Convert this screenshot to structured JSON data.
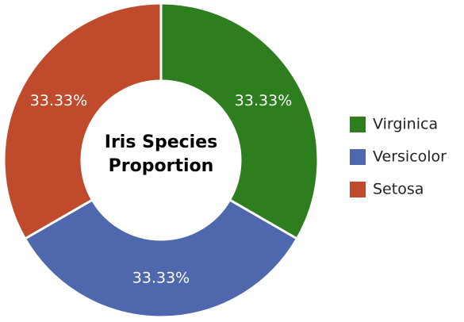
{
  "chart_data": {
    "type": "donut",
    "title": "Iris Species Proportion",
    "categories": [
      "Virginica",
      "Versicolor",
      "Setosa"
    ],
    "values": [
      33.33,
      33.33,
      33.33
    ],
    "value_labels": [
      "33.33%",
      "33.33%",
      "33.33%"
    ],
    "colors": [
      "#2e7d1e",
      "#4f67ad",
      "#bf4a2c"
    ],
    "legend": "right"
  }
}
